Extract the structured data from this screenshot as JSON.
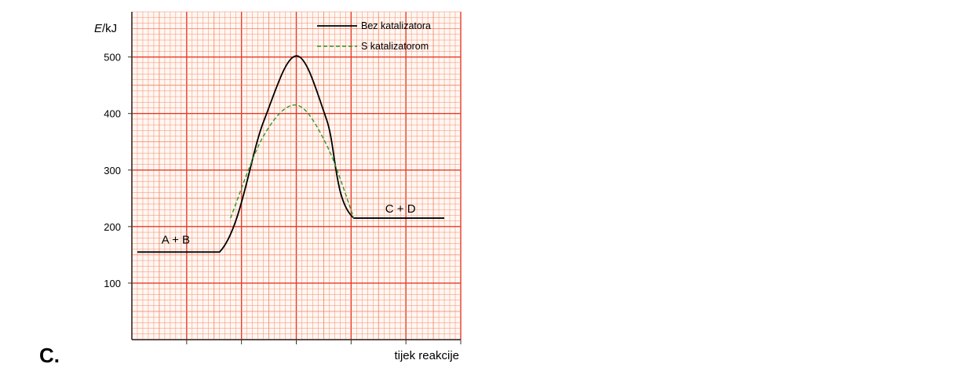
{
  "option_label": "C.",
  "chart_data": {
    "type": "line",
    "ylabel_italic": "E",
    "ylabel_unit": "/kJ",
    "xlabel": "tijek reakcije",
    "ylim": [
      0,
      580
    ],
    "yticks": [
      100,
      200,
      300,
      400,
      500
    ],
    "xlim": [
      0,
      6
    ],
    "xtick_positions": [
      1,
      2,
      3,
      4,
      5
    ],
    "grid": true,
    "grid_color": "#f08060",
    "grid_major_color": "#e83a28",
    "legend_position": "top-right",
    "series": [
      {
        "name": "Bez katalizatora",
        "color": "#000000",
        "dash": "solid",
        "points": [
          [
            0.1,
            155
          ],
          [
            1.6,
            155
          ],
          [
            2.4,
            385
          ],
          [
            3.0,
            502
          ],
          [
            3.55,
            390
          ],
          [
            4.05,
            215
          ],
          [
            5.7,
            215
          ]
        ]
      },
      {
        "name": "S katalizatorom",
        "color": "#2a9a2a",
        "dash": "dashed",
        "points": [
          [
            1.8,
            215
          ],
          [
            2.4,
            360
          ],
          [
            3.0,
            415
          ],
          [
            3.55,
            345
          ],
          [
            4.05,
            215
          ]
        ]
      }
    ],
    "annotations": [
      {
        "text": "A + B",
        "x": 0.8,
        "y": 170
      },
      {
        "text": "C + D",
        "x": 4.9,
        "y": 225
      }
    ]
  }
}
